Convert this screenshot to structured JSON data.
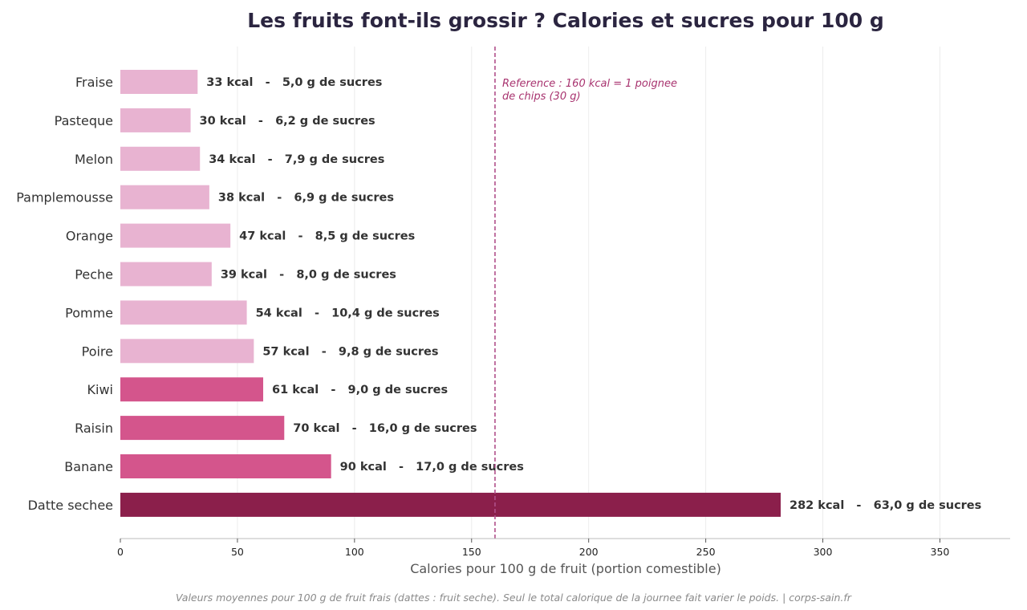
{
  "chart_data": {
    "type": "bar",
    "orientation": "horizontal",
    "title": "Les fruits font-ils grossir ? Calories et sucres pour 100 g",
    "xlabel": "Calories pour 100 g de fruit (portion comestible)",
    "ylabel": "",
    "xlim": [
      0,
      380
    ],
    "xticks": [
      0,
      50,
      100,
      150,
      200,
      250,
      300,
      350
    ],
    "grid": "vertical",
    "categories": [
      "Fraise",
      "Pasteque",
      "Melon",
      "Pamplemousse",
      "Orange",
      "Peche",
      "Pomme",
      "Poire",
      "Kiwi",
      "Raisin",
      "Banane",
      "Datte sechee"
    ],
    "values": [
      33,
      30,
      34,
      38,
      47,
      39,
      54,
      57,
      61,
      70,
      90,
      282
    ],
    "sugars": [
      5.0,
      6.2,
      7.9,
      6.9,
      8.5,
      8.0,
      10.4,
      9.8,
      9.0,
      16.0,
      17.0,
      63.0
    ],
    "labels": [
      "33 kcal   -   5,0 g de sucres",
      "30 kcal   -   6,2 g de sucres",
      "34 kcal   -   7,9 g de sucres",
      "38 kcal   -   6,9 g de sucres",
      "47 kcal   -   8,5 g de sucres",
      "39 kcal   -   8,0 g de sucres",
      "54 kcal   -   10,4 g de sucres",
      "57 kcal   -   9,8 g de sucres",
      "61 kcal   -   9,0 g de sucres",
      "70 kcal   -   16,0 g de sucres",
      "90 kcal   -   17,0 g de sucres",
      "282 kcal   -   63,0 g de sucres"
    ],
    "bar_colors": [
      "#e8b3d1",
      "#e8b3d1",
      "#e8b3d1",
      "#e8b3d1",
      "#e8b3d1",
      "#e8b3d1",
      "#e8b3d1",
      "#e8b3d1",
      "#d4558c",
      "#d4558c",
      "#d4558c",
      "#8b1f4b"
    ],
    "reference_line": {
      "value": 160,
      "color": "#b0508a",
      "label_lines": [
        "Reference : 160 kcal = 1 poignee",
        "de chips (30 g)"
      ]
    },
    "footnote": "Valeurs moyennes pour 100 g de fruit frais (dattes : fruit seche). Seul le total calorique de la journee fait varier le poids. | corps-sain.fr"
  }
}
